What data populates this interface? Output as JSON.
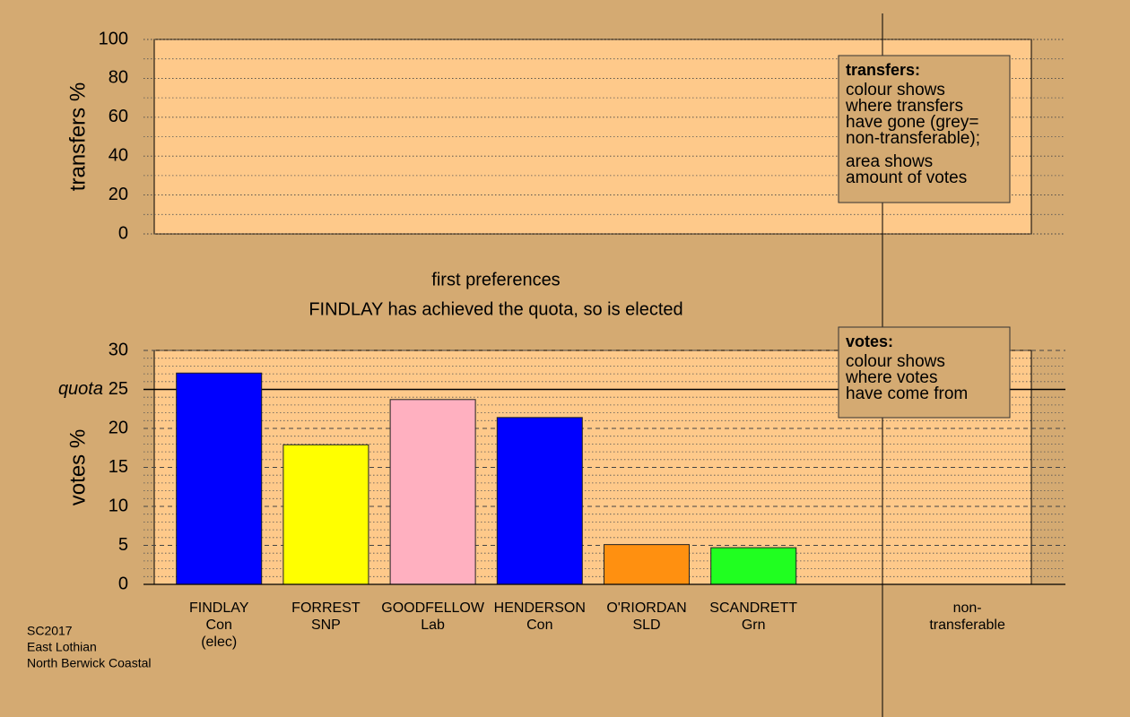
{
  "chart_data": [
    {
      "type": "panel",
      "ylabel": "transfers %",
      "ylim": [
        0,
        100
      ],
      "yticks": [
        0,
        20,
        40,
        60,
        80,
        100
      ],
      "yminor": [
        10,
        30,
        50,
        70,
        90
      ],
      "major_grid_style": "dotted",
      "legend": {
        "title": "transfers:",
        "paragraphs": [
          [
            "colour shows",
            "where transfers",
            "have gone (grey=",
            "non-transferable);"
          ],
          [
            "area shows",
            "amount of votes"
          ]
        ]
      }
    },
    {
      "type": "bar",
      "title": "first preferences",
      "subtitle": "FINDLAY has achieved the quota, so is elected",
      "ylabel": "votes %",
      "categories": [
        [
          "FINDLAY",
          "Con",
          "(elec)"
        ],
        [
          "FORREST",
          "SNP"
        ],
        [
          "GOODFELLOW",
          "Lab"
        ],
        [
          "HENDERSON",
          "Con"
        ],
        [
          "O'RIORDAN",
          "SLD"
        ],
        [
          "SCANDRETT",
          "Grn"
        ],
        null,
        [
          "non-",
          "transferable"
        ]
      ],
      "values": [
        27.1,
        17.9,
        23.7,
        21.4,
        5.1,
        4.7,
        null,
        null
      ],
      "colors": [
        "#0000ff",
        "#ffff00",
        "#ffb0c0",
        "#0000ff",
        "#ff9010",
        "#20ff20",
        null,
        null
      ],
      "ylim": [
        0,
        30
      ],
      "yticks": [
        0,
        5,
        10,
        15,
        20,
        25,
        30
      ],
      "yminor": [
        1,
        2,
        3,
        4,
        6,
        7,
        8,
        9,
        11,
        12,
        13,
        14,
        16,
        17,
        18,
        19,
        21,
        22,
        23,
        24,
        26,
        27,
        28,
        29
      ],
      "major_grid_style": "dashed",
      "quota": {
        "value": 25,
        "label": "quota"
      },
      "legend": {
        "title": "votes:",
        "paragraphs": [
          [
            "colour shows",
            "where votes",
            "have come from"
          ]
        ]
      }
    }
  ],
  "footer": [
    "SC2017",
    "East Lothian",
    "North Berwick Coastal"
  ]
}
